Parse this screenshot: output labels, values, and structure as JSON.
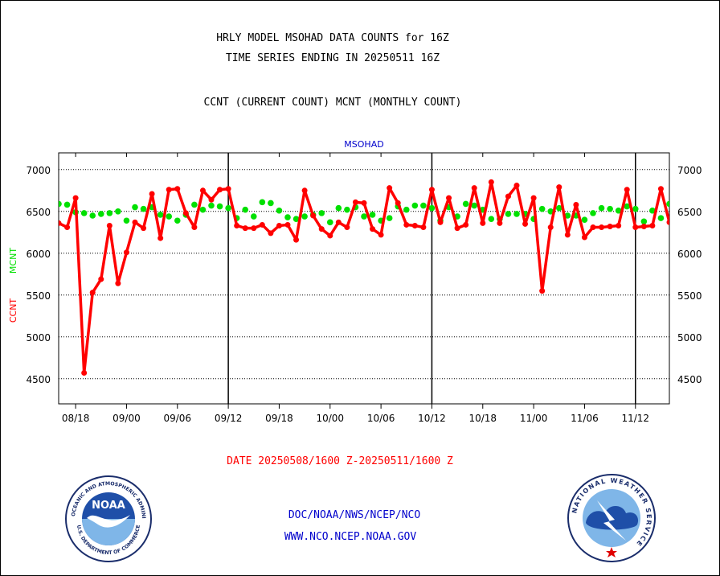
{
  "header": {
    "title_line1": "HRLY MODEL MSOHAD DATA COUNTS for 16Z",
    "title_line2": "TIME SERIES ENDING IN 20250511 16Z",
    "subtitle": "CCNT (CURRENT COUNT) MCNT (MONTHLY COUNT)"
  },
  "footer": {
    "date_range": "DATE 20250508/1600 Z-20250511/1600 Z",
    "link1": "DOC/NOAA/NWS/NCEP/NCO",
    "link2": "WWW.NCO.NCEP.NOAA.GOV"
  },
  "logos": {
    "noaa_text": "NOAA",
    "noaa_ring": "NATIONAL OCEANIC AND ATMOSPHERIC ADMINISTRATION",
    "noaa_ring_bottom": "U.S. DEPARTMENT OF COMMERCE",
    "nws_ring": "NATIONAL WEATHER SERVICE"
  },
  "colors": {
    "ccnt": "#ff0000",
    "mcnt": "#00e000",
    "title": "#000000",
    "plot_title": "#0000cc",
    "footer_date": "#ff0000",
    "footer_links": "#0000cc"
  },
  "chart_data": {
    "type": "line",
    "title": "MSOHAD",
    "ylabel_ccnt": "CCNT",
    "ylabel_mcnt": "MCNT",
    "ylim": [
      4200,
      7200
    ],
    "yticks": [
      4500,
      5000,
      5500,
      6000,
      6500,
      7000
    ],
    "grid": "horizontal dotted",
    "xlim": [
      0,
      72
    ],
    "x_tick_labels": [
      "08/18",
      "09/00",
      "09/06",
      "09/12",
      "09/18",
      "10/00",
      "10/06",
      "10/12",
      "10/18",
      "11/00",
      "11/06",
      "11/12"
    ],
    "x_tick_positions": [
      2,
      8,
      14,
      20,
      26,
      32,
      38,
      44,
      50,
      56,
      62,
      68
    ],
    "day_boundaries": [
      20,
      44,
      68
    ],
    "series": [
      {
        "name": "CCNT",
        "values": [
          6360,
          6310,
          6660,
          4570,
          5530,
          5690,
          6330,
          5640,
          6010,
          6370,
          6300,
          6710,
          6180,
          6760,
          6770,
          6480,
          6310,
          6750,
          6640,
          6760,
          6770,
          6330,
          6300,
          6300,
          6340,
          6240,
          6330,
          6340,
          6160,
          6750,
          6450,
          6290,
          6210,
          6370,
          6310,
          6610,
          6600,
          6290,
          6220,
          6780,
          6600,
          6340,
          6330,
          6310,
          6760,
          6370,
          6660,
          6300,
          6340,
          6780,
          6360,
          6850,
          6360,
          6680,
          6810,
          6350,
          6660,
          5550,
          6310,
          6790,
          6220,
          6580,
          6190,
          6310,
          6310,
          6320,
          6330,
          6760,
          6310,
          6320,
          6330,
          6770,
          6370
        ]
      },
      {
        "name": "MCNT",
        "values": [
          6590,
          6580,
          6490,
          6480,
          6450,
          6470,
          6480,
          6500,
          6390,
          6550,
          6530,
          6550,
          6460,
          6440,
          6390,
          6460,
          6580,
          6520,
          6570,
          6560,
          6540,
          6420,
          6520,
          6440,
          6610,
          6600,
          6510,
          6430,
          6410,
          6440,
          6460,
          6480,
          6370,
          6540,
          6520,
          6550,
          6440,
          6460,
          6390,
          6420,
          6560,
          6520,
          6570,
          6570,
          6540,
          6390,
          6550,
          6440,
          6590,
          6570,
          6520,
          6410,
          6410,
          6470,
          6470,
          6470,
          6410,
          6530,
          6500,
          6540,
          6450,
          6450,
          6400,
          6480,
          6540,
          6530,
          6510,
          6560,
          6530,
          6380,
          6510,
          6420,
          6590
        ]
      }
    ]
  }
}
